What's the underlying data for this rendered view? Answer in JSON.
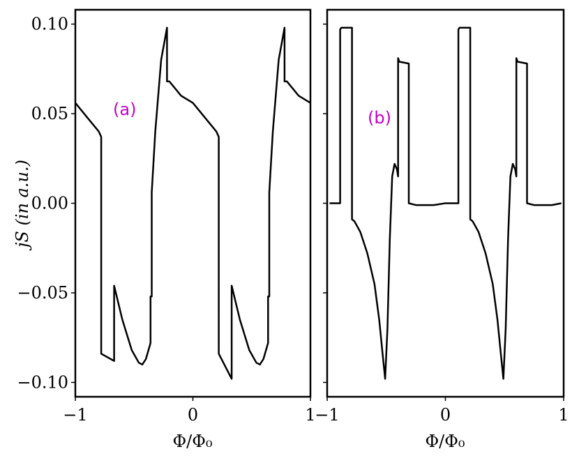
{
  "chart_data": [
    {
      "panel": "a",
      "type": "line",
      "annotation": "(a)",
      "xlabel": "Φ/Φ₀",
      "ylabel": "jS (in a.u.)",
      "xlim": [
        -1,
        1
      ],
      "ylim": [
        -0.108,
        0.108
      ],
      "xticks": [
        -1,
        0,
        1
      ],
      "yticks": [
        -0.1,
        -0.05,
        0.0,
        0.05,
        0.1
      ],
      "ytick_labels": [
        "−0.10",
        "−0.05",
        "0.00",
        "0.05",
        "0.10"
      ],
      "xtick_labels": [
        "−1",
        "0",
        "1"
      ],
      "grid": false,
      "series": [
        {
          "x": [
            -1.0,
            -0.9,
            -0.8,
            -0.78,
            -0.78,
            -0.67,
            -0.67,
            -0.6,
            -0.52,
            -0.46,
            -0.43,
            -0.4,
            -0.36,
            -0.36,
            -0.35,
            -0.35,
            -0.32,
            -0.27,
            -0.22,
            -0.22,
            -0.2,
            -0.1,
            0.0,
            0.1,
            0.2,
            0.22,
            0.22,
            0.33,
            0.33,
            0.4,
            0.48,
            0.54,
            0.57,
            0.6,
            0.64,
            0.64,
            0.65,
            0.65,
            0.68,
            0.73,
            0.78,
            0.78,
            0.8,
            0.9,
            1.0
          ],
          "y": [
            0.056,
            0.048,
            0.04,
            0.037,
            -0.084,
            -0.088,
            -0.046,
            -0.065,
            -0.082,
            -0.089,
            -0.09,
            -0.087,
            -0.078,
            -0.052,
            -0.052,
            0.006,
            0.04,
            0.08,
            0.098,
            0.068,
            0.068,
            0.06,
            0.056,
            0.048,
            0.04,
            0.037,
            -0.084,
            -0.098,
            -0.046,
            -0.065,
            -0.082,
            -0.089,
            -0.09,
            -0.087,
            -0.078,
            -0.052,
            -0.052,
            0.006,
            0.04,
            0.08,
            0.098,
            0.068,
            0.068,
            0.06,
            0.056
          ]
        }
      ]
    },
    {
      "panel": "b",
      "type": "line",
      "annotation": "(b)",
      "xlabel": "Φ/Φ₀",
      "xlim": [
        -1,
        1
      ],
      "ylim": [
        -0.108,
        0.108
      ],
      "xticks": [
        -1,
        0,
        1
      ],
      "xtick_labels": [
        "−1",
        "0",
        "1"
      ],
      "yticks": [
        -0.1,
        -0.05,
        0.0,
        0.05,
        0.1
      ],
      "grid": false,
      "series": [
        {
          "x": [
            -0.98,
            -0.89,
            -0.89,
            -0.88,
            -0.79,
            -0.79,
            -0.77,
            -0.72,
            -0.66,
            -0.6,
            -0.56,
            -0.53,
            -0.51,
            -0.49,
            -0.47,
            -0.45,
            -0.43,
            -0.41,
            -0.4,
            -0.4,
            -0.39,
            -0.31,
            -0.31,
            -0.25,
            -0.1,
            0.0,
            0.11,
            0.11,
            0.12,
            0.21,
            0.21,
            0.23,
            0.28,
            0.34,
            0.4,
            0.44,
            0.47,
            0.49,
            0.51,
            0.53,
            0.55,
            0.57,
            0.59,
            0.6,
            0.6,
            0.61,
            0.69,
            0.69,
            0.75,
            0.9,
            0.98
          ],
          "y": [
            0.0,
            0.0,
            0.097,
            0.098,
            0.098,
            -0.009,
            -0.01,
            -0.016,
            -0.028,
            -0.045,
            -0.065,
            -0.085,
            -0.098,
            -0.07,
            -0.02,
            0.015,
            0.022,
            0.019,
            0.015,
            0.081,
            0.079,
            0.078,
            0.0,
            -0.001,
            -0.001,
            0.0,
            0.0,
            0.097,
            0.098,
            0.098,
            -0.009,
            -0.01,
            -0.016,
            -0.028,
            -0.045,
            -0.065,
            -0.085,
            -0.098,
            -0.07,
            -0.02,
            0.015,
            0.022,
            0.019,
            0.015,
            0.081,
            0.079,
            0.078,
            0.0,
            -0.001,
            -0.001,
            0.0
          ]
        }
      ]
    }
  ],
  "colors": {
    "curve": "#000000",
    "panel_label": "#c400c4"
  }
}
